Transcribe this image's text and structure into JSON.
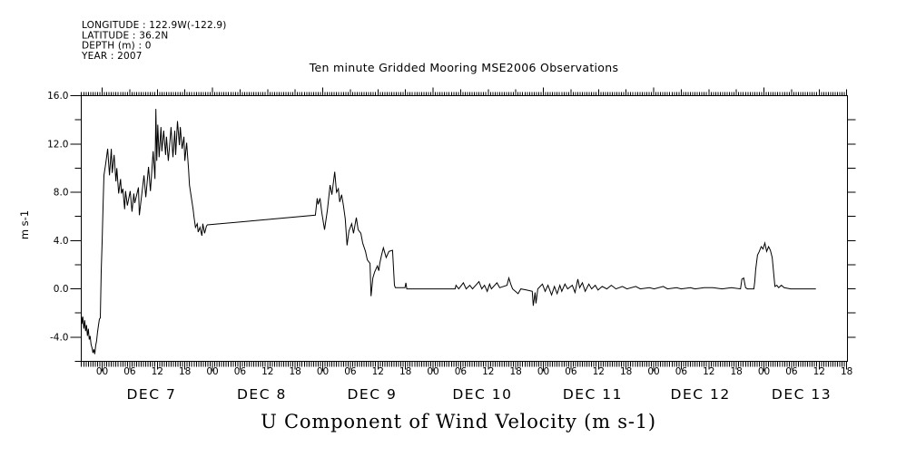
{
  "title": "Ten minute Gridded Mooring MSE2006 Observations",
  "meta": {
    "lines": [
      "LONGITUDE : 122.9W(-122.9)",
      "LATITUDE : 36.2N",
      "DEPTH (m) : 0",
      "YEAR : 2007"
    ]
  },
  "chart_data": {
    "type": "line",
    "title": "Ten minute Gridded Mooring MSE2006 Observations",
    "xlabel": "U Component of Wind Velocity (m s-1)",
    "ylabel": "m s-1",
    "x_unit": "hours since 2007-12-07 00:00",
    "xlim": [
      -4.5,
      162.2
    ],
    "ylim": [
      -6,
      16
    ],
    "grid": false,
    "legend": "none",
    "line_color": "#000000",
    "background": "#ffffff",
    "y_major_ticks": [
      16,
      12,
      8,
      4,
      0,
      -4
    ],
    "y_minor_ticks": [
      14,
      10,
      6,
      2,
      -2,
      -6
    ],
    "y_right_ticks": [
      14,
      12,
      10,
      8,
      6,
      4,
      2,
      0,
      -2,
      -4
    ],
    "x_tick_minor_hours": 0.5,
    "x_tick_medium_hours": 6,
    "x_tick_major_hours": 24,
    "hour_label_cycle": [
      "00",
      "06",
      "12",
      "18"
    ],
    "hour_label_range": [
      0,
      162
    ],
    "days": [
      {
        "label": "DEC  7",
        "t": 10.75
      },
      {
        "label": "DEC  8",
        "t": 34.75
      },
      {
        "label": "DEC  9",
        "t": 58.75
      },
      {
        "label": "DEC 10",
        "t": 82.75
      },
      {
        "label": "DEC 11",
        "t": 106.75
      },
      {
        "label": "DEC 12",
        "t": 130.2
      },
      {
        "label": "DEC 13",
        "t": 152.2
      }
    ],
    "series": [
      {
        "name": "U component of wind velocity (m s-1)",
        "points": [
          [
            -4.5,
            -2.3
          ],
          [
            -4.4,
            -2.9
          ],
          [
            -4.2,
            -2.3
          ],
          [
            -4.0,
            -3.3
          ],
          [
            -3.8,
            -2.6
          ],
          [
            -3.6,
            -3.5
          ],
          [
            -3.4,
            -3.0
          ],
          [
            -3.2,
            -3.9
          ],
          [
            -3.0,
            -3.3
          ],
          [
            -2.8,
            -4.2
          ],
          [
            -2.6,
            -3.9
          ],
          [
            -2.4,
            -4.6
          ],
          [
            -2.2,
            -4.9
          ],
          [
            -2.0,
            -5.3
          ],
          [
            -1.8,
            -5.0
          ],
          [
            -1.6,
            -5.4
          ],
          [
            -1.4,
            -4.7
          ],
          [
            -1.2,
            -4.3
          ],
          [
            -1.0,
            -3.6
          ],
          [
            -0.8,
            -3.0
          ],
          [
            -0.6,
            -2.5
          ],
          [
            -0.4,
            -2.4
          ],
          [
            -0.2,
            1.5
          ],
          [
            0.0,
            3.9
          ],
          [
            0.2,
            6.8
          ],
          [
            0.4,
            9.4
          ],
          [
            0.8,
            10.4
          ],
          [
            1.2,
            11.6
          ],
          [
            1.6,
            9.4
          ],
          [
            2.0,
            11.6
          ],
          [
            2.2,
            9.6
          ],
          [
            2.6,
            11.1
          ],
          [
            3.0,
            8.9
          ],
          [
            3.2,
            10.0
          ],
          [
            3.6,
            7.9
          ],
          [
            4.0,
            9.1
          ],
          [
            4.2,
            7.9
          ],
          [
            4.5,
            8.3
          ],
          [
            4.9,
            6.6
          ],
          [
            5.1,
            8.1
          ],
          [
            5.5,
            6.9
          ],
          [
            6.1,
            8.1
          ],
          [
            6.5,
            6.4
          ],
          [
            6.9,
            7.9
          ],
          [
            7.1,
            7.1
          ],
          [
            7.9,
            8.4
          ],
          [
            8.1,
            6.1
          ],
          [
            8.5,
            7.4
          ],
          [
            9.1,
            9.4
          ],
          [
            9.5,
            7.6
          ],
          [
            10.1,
            10.1
          ],
          [
            10.5,
            8.1
          ],
          [
            11.1,
            11.4
          ],
          [
            11.5,
            9.1
          ],
          [
            11.7,
            14.9
          ],
          [
            11.9,
            10.6
          ],
          [
            12.1,
            13.6
          ],
          [
            12.4,
            10.9
          ],
          [
            12.8,
            13.4
          ],
          [
            13.0,
            11.4
          ],
          [
            13.4,
            13.1
          ],
          [
            13.8,
            11.1
          ],
          [
            14.0,
            12.6
          ],
          [
            14.4,
            10.6
          ],
          [
            14.8,
            12.4
          ],
          [
            15.0,
            13.4
          ],
          [
            15.4,
            10.9
          ],
          [
            15.8,
            13.1
          ],
          [
            16.0,
            11.1
          ],
          [
            16.4,
            13.9
          ],
          [
            16.8,
            11.9
          ],
          [
            17.0,
            13.4
          ],
          [
            17.4,
            11.6
          ],
          [
            17.8,
            12.6
          ],
          [
            18.0,
            10.6
          ],
          [
            18.4,
            12.1
          ],
          [
            18.8,
            9.9
          ],
          [
            19.0,
            8.6
          ],
          [
            19.4,
            7.6
          ],
          [
            19.8,
            6.6
          ],
          [
            20.0,
            5.9
          ],
          [
            20.3,
            5.1
          ],
          [
            20.7,
            5.4
          ],
          [
            20.9,
            4.7
          ],
          [
            21.3,
            5.1
          ],
          [
            21.7,
            4.4
          ],
          [
            21.9,
            5.4
          ],
          [
            22.3,
            4.6
          ],
          [
            22.7,
            5.2
          ],
          [
            22.9,
            5.3
          ],
          [
            46.4,
            6.1
          ],
          [
            46.8,
            7.5
          ],
          [
            47.0,
            7.0
          ],
          [
            47.4,
            7.5
          ],
          [
            47.8,
            6.3
          ],
          [
            48.4,
            4.9
          ],
          [
            49.0,
            6.5
          ],
          [
            49.6,
            8.6
          ],
          [
            50.0,
            7.8
          ],
          [
            50.6,
            9.7
          ],
          [
            51.0,
            8.0
          ],
          [
            51.4,
            8.3
          ],
          [
            51.7,
            7.2
          ],
          [
            52.1,
            7.8
          ],
          [
            52.5,
            6.9
          ],
          [
            52.9,
            5.8
          ],
          [
            53.3,
            3.6
          ],
          [
            53.7,
            4.8
          ],
          [
            54.3,
            5.4
          ],
          [
            54.7,
            4.6
          ],
          [
            55.3,
            5.9
          ],
          [
            55.7,
            4.9
          ],
          [
            56.3,
            4.6
          ],
          [
            56.7,
            3.8
          ],
          [
            57.3,
            3.1
          ],
          [
            57.7,
            2.4
          ],
          [
            58.3,
            2.1
          ],
          [
            58.5,
            -0.6
          ],
          [
            58.9,
            0.9
          ],
          [
            59.3,
            1.4
          ],
          [
            59.9,
            1.9
          ],
          [
            60.2,
            1.5
          ],
          [
            60.4,
            2.1
          ],
          [
            60.8,
            2.8
          ],
          [
            61.2,
            3.4
          ],
          [
            61.8,
            2.6
          ],
          [
            62.4,
            3.1
          ],
          [
            63.2,
            3.2
          ],
          [
            63.6,
            0.3
          ],
          [
            63.8,
            0.1
          ],
          [
            65.9,
            0.1
          ],
          [
            66.1,
            0.5
          ],
          [
            66.3,
            0.0
          ],
          [
            76.8,
            0.0
          ],
          [
            77.0,
            0.3
          ],
          [
            77.6,
            0.0
          ],
          [
            78.6,
            0.5
          ],
          [
            79.2,
            0.0
          ],
          [
            80.0,
            0.3
          ],
          [
            80.6,
            0.0
          ],
          [
            82.0,
            0.6
          ],
          [
            82.6,
            0.0
          ],
          [
            83.2,
            0.3
          ],
          [
            83.8,
            -0.2
          ],
          [
            84.3,
            0.4
          ],
          [
            84.7,
            0.0
          ],
          [
            85.9,
            0.5
          ],
          [
            86.5,
            0.1
          ],
          [
            88.1,
            0.3
          ],
          [
            88.5,
            0.9
          ],
          [
            88.9,
            0.4
          ],
          [
            89.3,
            0.0
          ],
          [
            90.5,
            -0.4
          ],
          [
            91.1,
            0.0
          ],
          [
            92.4,
            -0.1
          ],
          [
            93.6,
            -0.2
          ],
          [
            93.8,
            -1.4
          ],
          [
            94.2,
            -0.3
          ],
          [
            94.4,
            -1.2
          ],
          [
            94.8,
            0.0
          ],
          [
            95.8,
            0.4
          ],
          [
            96.4,
            -0.2
          ],
          [
            97.0,
            0.3
          ],
          [
            97.8,
            -0.5
          ],
          [
            98.4,
            0.2
          ],
          [
            99.0,
            -0.4
          ],
          [
            99.6,
            0.3
          ],
          [
            100.0,
            -0.2
          ],
          [
            100.7,
            0.4
          ],
          [
            101.3,
            0.0
          ],
          [
            102.3,
            0.3
          ],
          [
            102.9,
            -0.3
          ],
          [
            103.5,
            0.8
          ],
          [
            103.9,
            0.1
          ],
          [
            104.5,
            0.5
          ],
          [
            105.1,
            -0.2
          ],
          [
            105.9,
            0.4
          ],
          [
            106.5,
            0.0
          ],
          [
            107.3,
            0.3
          ],
          [
            107.9,
            -0.1
          ],
          [
            108.8,
            0.2
          ],
          [
            109.8,
            0.0
          ],
          [
            110.8,
            0.3
          ],
          [
            111.8,
            0.0
          ],
          [
            113.2,
            0.2
          ],
          [
            114.2,
            0.0
          ],
          [
            116.1,
            0.2
          ],
          [
            117.1,
            0.0
          ],
          [
            119.1,
            0.1
          ],
          [
            120.1,
            0.0
          ],
          [
            122.1,
            0.2
          ],
          [
            123.0,
            0.0
          ],
          [
            125.0,
            0.1
          ],
          [
            126.0,
            0.0
          ],
          [
            128.0,
            0.1
          ],
          [
            129.0,
            0.0
          ],
          [
            131.0,
            0.1
          ],
          [
            132.9,
            0.1
          ],
          [
            134.9,
            0.0
          ],
          [
            136.9,
            0.1
          ],
          [
            138.9,
            0.0
          ],
          [
            139.2,
            0.8
          ],
          [
            139.6,
            0.9
          ],
          [
            140.0,
            0.1
          ],
          [
            140.4,
            0.0
          ],
          [
            141.8,
            0.0
          ],
          [
            142.0,
            0.6
          ],
          [
            142.2,
            1.6
          ],
          [
            142.6,
            2.8
          ],
          [
            143.0,
            3.1
          ],
          [
            143.4,
            3.5
          ],
          [
            143.8,
            3.3
          ],
          [
            144.2,
            3.8
          ],
          [
            144.6,
            3.1
          ],
          [
            145.0,
            3.5
          ],
          [
            145.4,
            3.2
          ],
          [
            145.8,
            2.6
          ],
          [
            146.2,
            1.0
          ],
          [
            146.4,
            0.2
          ],
          [
            146.8,
            0.3
          ],
          [
            147.2,
            0.1
          ],
          [
            147.8,
            0.3
          ],
          [
            148.4,
            0.1
          ],
          [
            149.8,
            0.0
          ],
          [
            155.3,
            0.0
          ]
        ]
      }
    ]
  }
}
